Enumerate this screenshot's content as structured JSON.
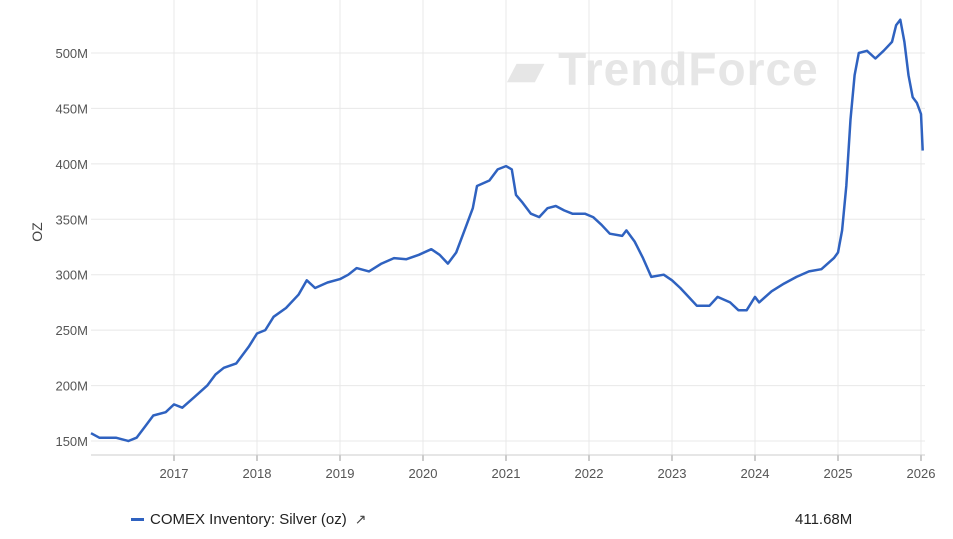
{
  "chart_data": {
    "type": "line",
    "title": "",
    "ylabel": "OZ",
    "xlabel": "",
    "xlim": [
      2016.0,
      2026.0
    ],
    "ylim": [
      140,
      540
    ],
    "grid": true,
    "x_ticks": [
      "2017",
      "2018",
      "2019",
      "2020",
      "2021",
      "2022",
      "2023",
      "2024",
      "2025",
      "2026"
    ],
    "y_ticks": [
      "150M",
      "200M",
      "250M",
      "300M",
      "350M",
      "400M",
      "450M",
      "500M"
    ],
    "legend_position": "bottom",
    "series": [
      {
        "name": "COMEX Inventory: Silver (oz)",
        "color": "#2f62c0",
        "last_value": "411.68M",
        "points": [
          [
            2016.0,
            157
          ],
          [
            2016.1,
            153
          ],
          [
            2016.3,
            153
          ],
          [
            2016.45,
            150
          ],
          [
            2016.55,
            153
          ],
          [
            2016.65,
            163
          ],
          [
            2016.75,
            173
          ],
          [
            2016.9,
            176
          ],
          [
            2017.0,
            183
          ],
          [
            2017.1,
            180
          ],
          [
            2017.25,
            190
          ],
          [
            2017.4,
            200
          ],
          [
            2017.5,
            210
          ],
          [
            2017.6,
            216
          ],
          [
            2017.75,
            220
          ],
          [
            2017.9,
            235
          ],
          [
            2018.0,
            247
          ],
          [
            2018.1,
            250
          ],
          [
            2018.2,
            262
          ],
          [
            2018.35,
            270
          ],
          [
            2018.5,
            282
          ],
          [
            2018.6,
            295
          ],
          [
            2018.7,
            288
          ],
          [
            2018.85,
            293
          ],
          [
            2019.0,
            296
          ],
          [
            2019.1,
            300
          ],
          [
            2019.2,
            306
          ],
          [
            2019.35,
            303
          ],
          [
            2019.5,
            310
          ],
          [
            2019.65,
            315
          ],
          [
            2019.8,
            314
          ],
          [
            2019.95,
            318
          ],
          [
            2020.1,
            323
          ],
          [
            2020.2,
            318
          ],
          [
            2020.3,
            310
          ],
          [
            2020.4,
            320
          ],
          [
            2020.5,
            340
          ],
          [
            2020.6,
            360
          ],
          [
            2020.65,
            380
          ],
          [
            2020.8,
            385
          ],
          [
            2020.9,
            395
          ],
          [
            2021.0,
            398
          ],
          [
            2021.07,
            395
          ],
          [
            2021.12,
            372
          ],
          [
            2021.2,
            365
          ],
          [
            2021.3,
            355
          ],
          [
            2021.4,
            352
          ],
          [
            2021.5,
            360
          ],
          [
            2021.6,
            362
          ],
          [
            2021.7,
            358
          ],
          [
            2021.8,
            355
          ],
          [
            2021.95,
            355
          ],
          [
            2022.05,
            352
          ],
          [
            2022.15,
            345
          ],
          [
            2022.25,
            337
          ],
          [
            2022.4,
            335
          ],
          [
            2022.45,
            340
          ],
          [
            2022.55,
            330
          ],
          [
            2022.65,
            315
          ],
          [
            2022.75,
            298
          ],
          [
            2022.9,
            300
          ],
          [
            2023.0,
            295
          ],
          [
            2023.1,
            288
          ],
          [
            2023.2,
            280
          ],
          [
            2023.3,
            272
          ],
          [
            2023.45,
            272
          ],
          [
            2023.55,
            280
          ],
          [
            2023.7,
            275
          ],
          [
            2023.8,
            268
          ],
          [
            2023.9,
            268
          ],
          [
            2024.0,
            280
          ],
          [
            2024.05,
            275
          ],
          [
            2024.2,
            285
          ],
          [
            2024.35,
            292
          ],
          [
            2024.5,
            298
          ],
          [
            2024.65,
            303
          ],
          [
            2024.8,
            305
          ],
          [
            2024.95,
            315
          ],
          [
            2025.0,
            320
          ],
          [
            2025.05,
            340
          ],
          [
            2025.1,
            380
          ],
          [
            2025.15,
            440
          ],
          [
            2025.2,
            480
          ],
          [
            2025.25,
            500
          ],
          [
            2025.35,
            502
          ],
          [
            2025.45,
            495
          ],
          [
            2025.55,
            502
          ],
          [
            2025.65,
            510
          ],
          [
            2025.7,
            525
          ],
          [
            2025.75,
            530
          ],
          [
            2025.8,
            510
          ],
          [
            2025.85,
            480
          ],
          [
            2025.9,
            460
          ],
          [
            2025.95,
            455
          ],
          [
            2026.0,
            445
          ],
          [
            2026.02,
            412
          ]
        ]
      }
    ]
  },
  "watermark": "TrendForce",
  "legend": {
    "label": "COMEX Inventory: Silver (oz)",
    "icon": "external-link-icon"
  }
}
